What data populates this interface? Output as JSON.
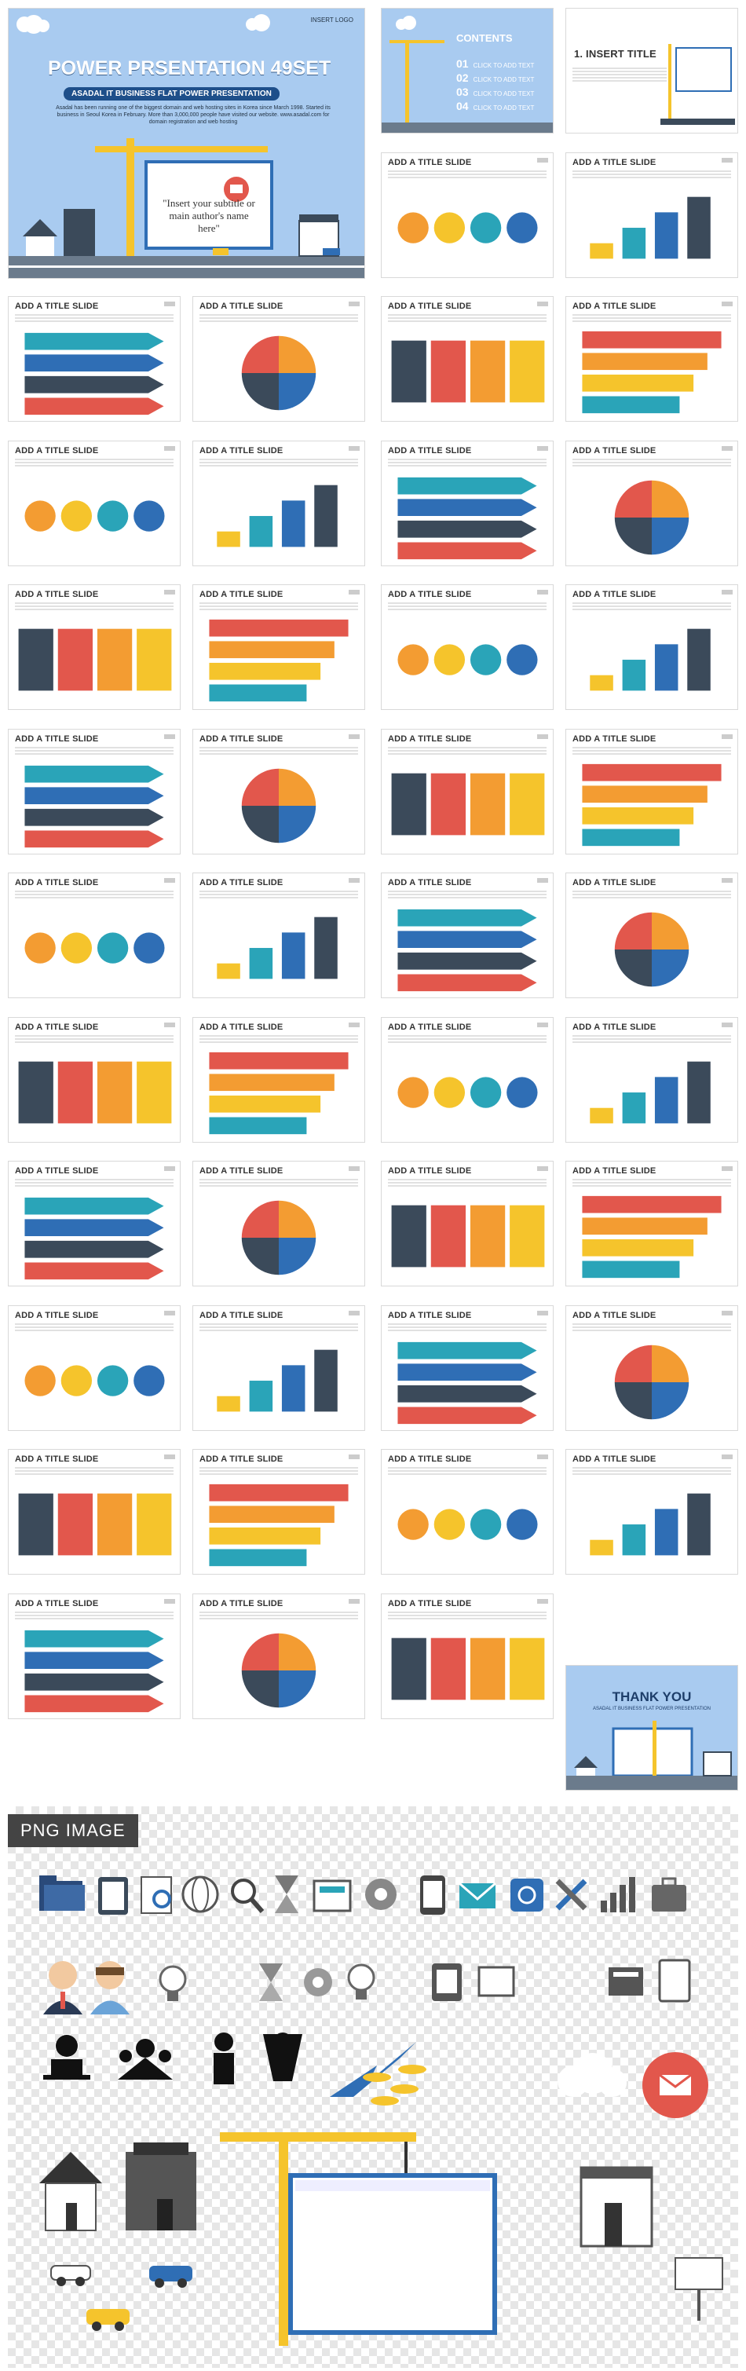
{
  "cover": {
    "logo_text": "INSERT LOGO",
    "title": "POWER PRSENTATION 49SET",
    "subtitle": "ASADAL IT BUSINESS FLAT POWER PRESENTATION",
    "paragraph": "Asadal has been running one of the biggest domain and web hosting sites in Korea since March 1998. Started its business in Seoul Korea in February. More than 3,000,000 people have visited our website. www.asadal.com for domain registration and web hosting",
    "quote": "\"Insert your subtitle or main author's name here\""
  },
  "contents": {
    "title": "CONTENTS",
    "items": [
      {
        "num": "01",
        "text": "CLICK TO ADD TEXT"
      },
      {
        "num": "02",
        "text": "CLICK TO ADD TEXT"
      },
      {
        "num": "03",
        "text": "CLICK TO ADD TEXT"
      },
      {
        "num": "04",
        "text": "CLICK TO ADD TEXT"
      }
    ]
  },
  "insert_title": "1. INSERT TITLE",
  "slide_title": "ADD A TITLE SLIDE",
  "thank_you": {
    "title": "THANK YOU",
    "subtitle": "ASADAL IT BUSINESS FLAT POWER PRESENTATION"
  },
  "png_label": "PNG IMAGE",
  "colors": {
    "sky": "#a9cbf0",
    "red": "#e2574c",
    "orange": "#f39c32",
    "yellow": "#f5c42c",
    "teal": "#2aa4b8",
    "blue": "#2f6eb5",
    "dark": "#3b4a5a"
  },
  "icons": [
    "folder-icon",
    "tablet-icon",
    "document-search-icon",
    "globe-icon",
    "magnifier-icon",
    "hourglass-icon",
    "mailbox-icon",
    "gear-icon",
    "phone-icon",
    "envelope-icon",
    "at-sign-icon",
    "tools-icon",
    "bar-chart-icon",
    "briefcase-icon",
    "businessman-icon",
    "businesswoman-icon",
    "lightbulb-icon",
    "hotel-icon",
    "house-icon",
    "crane-icon",
    "car-icon",
    "cloud-icon",
    "mail-badge-icon",
    "coins-icon",
    "arrow-up-icon",
    "shop-icon",
    "billboard-icon"
  ]
}
